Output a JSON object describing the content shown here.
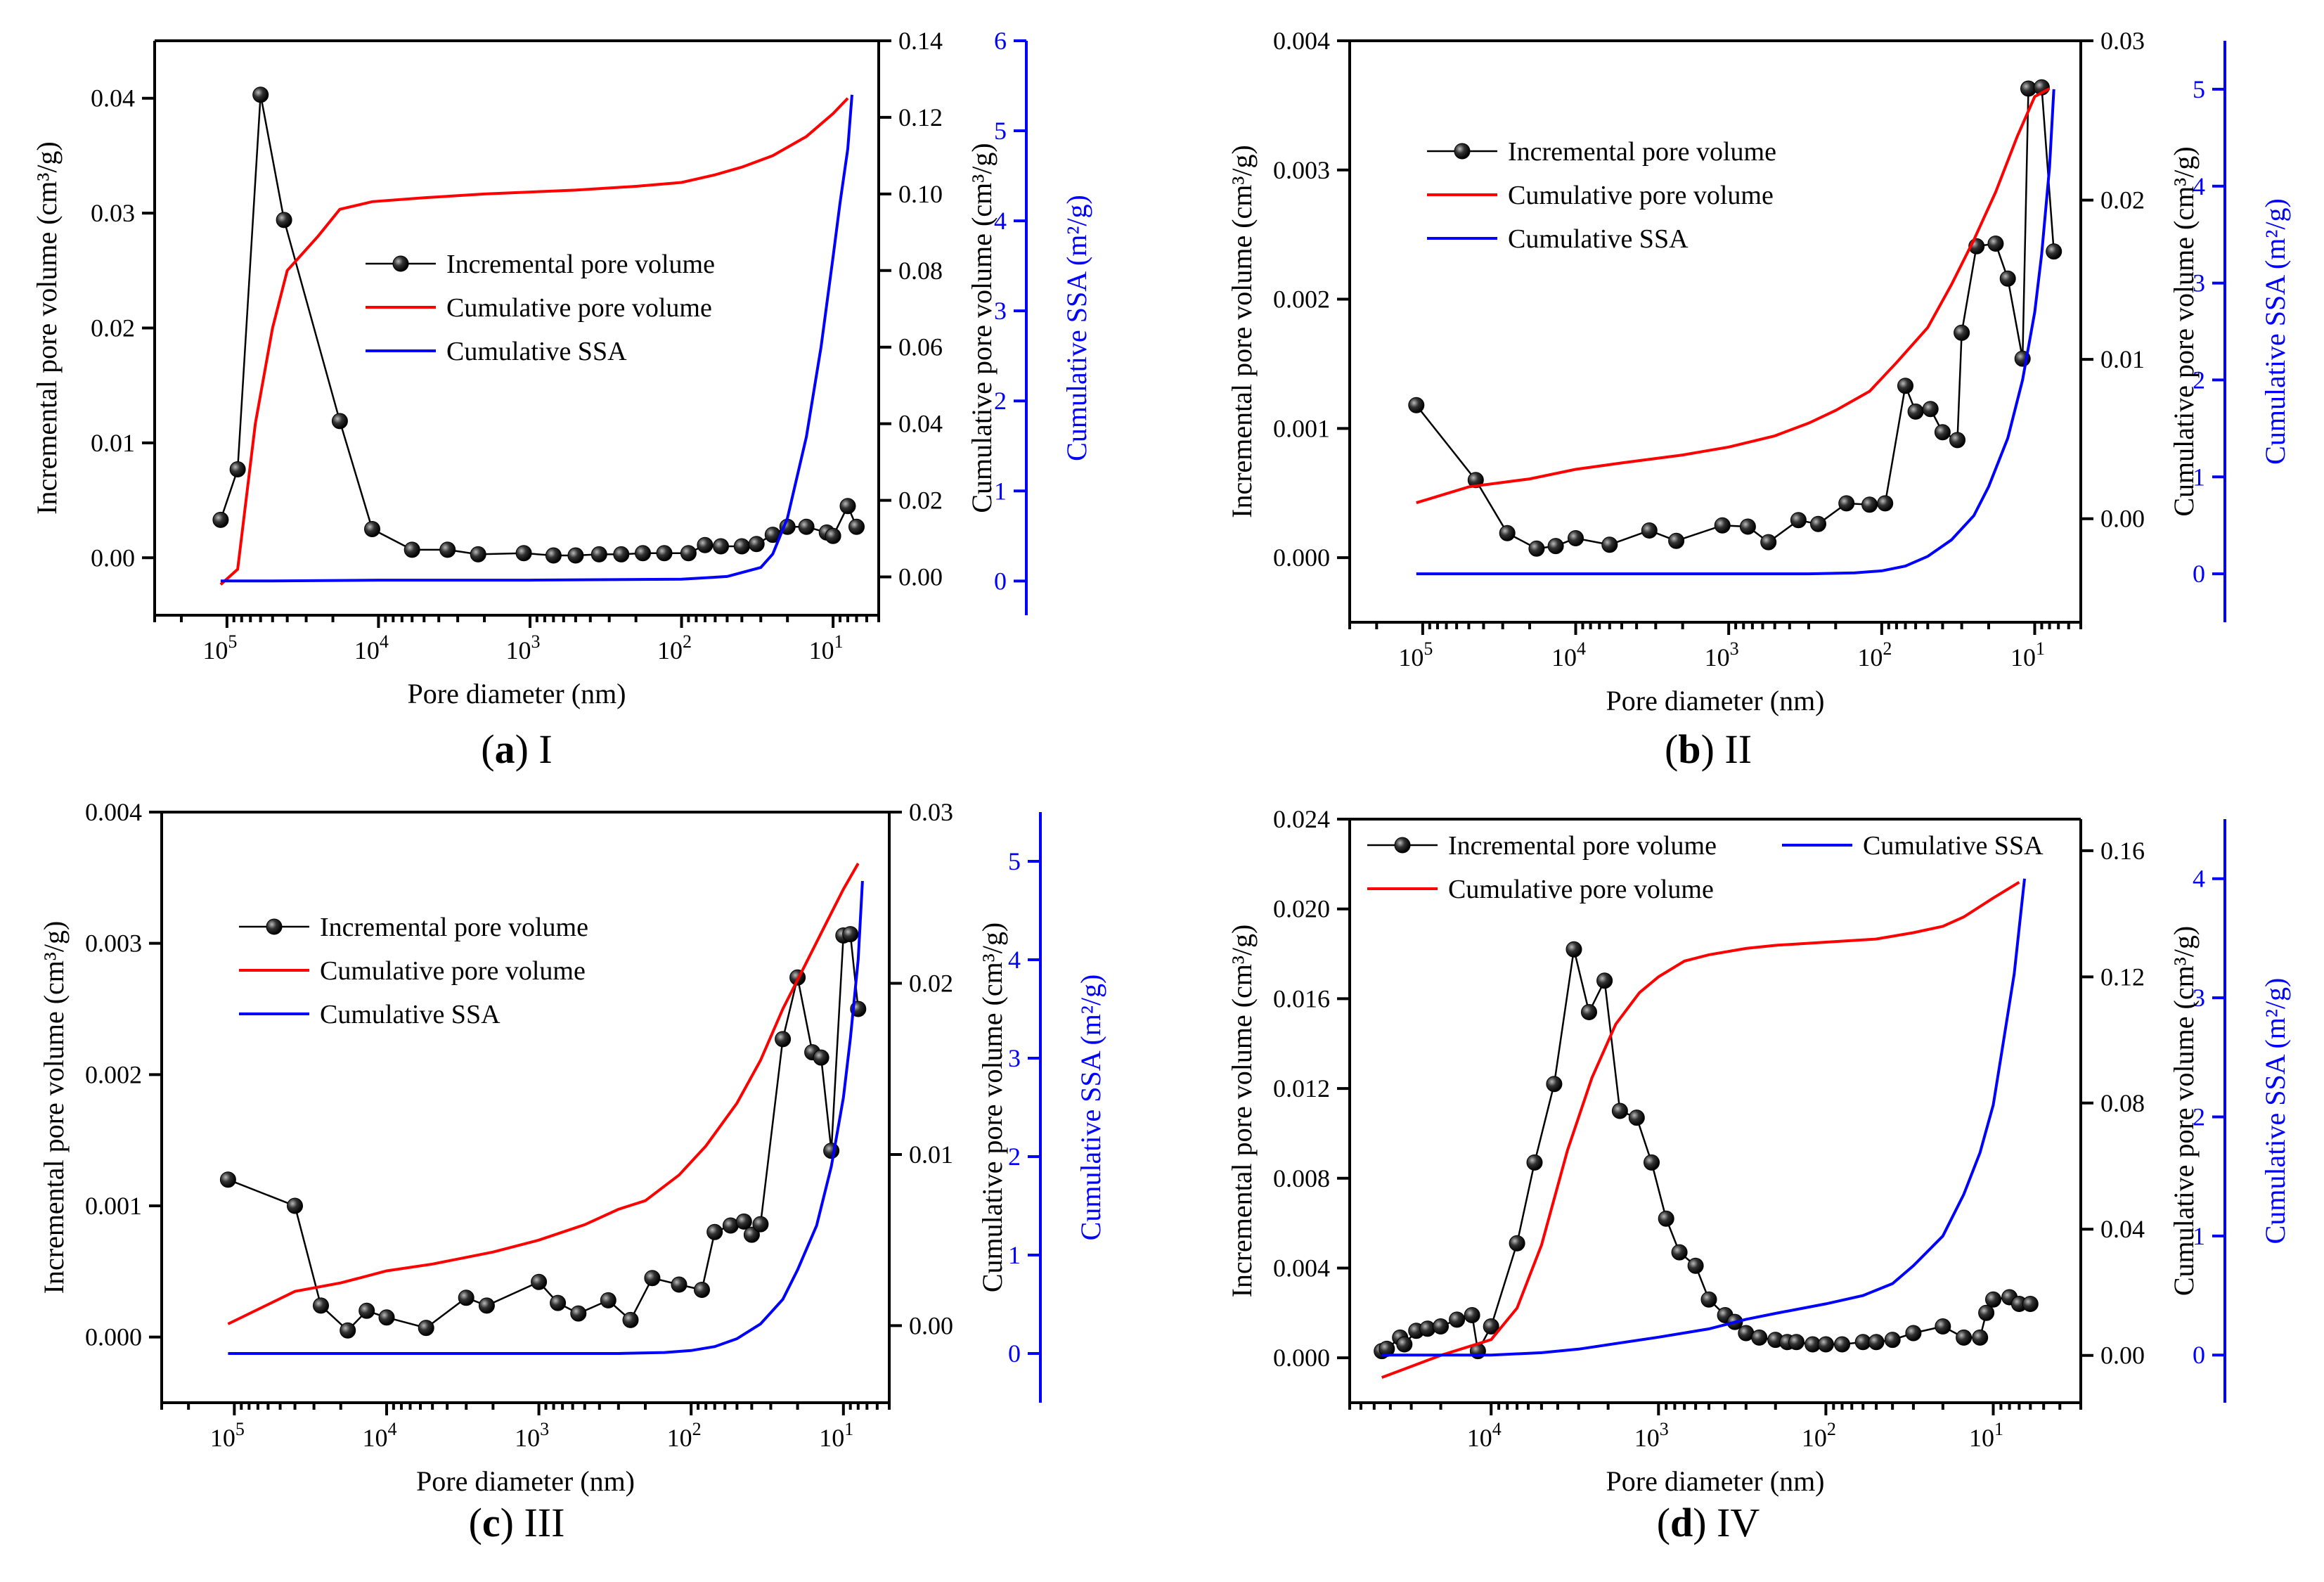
{
  "chart_data": [
    {
      "type": "line",
      "caption": {
        "letter": "a",
        "label": "I"
      },
      "xlabel": "Pore diameter (nm)",
      "ylabel": "Incremental pore volume (cm³/g)",
      "y2label": "Cumulative pore volume (cm³/g)",
      "y3label": "Cumulative SSA (m²/g)",
      "xscale": "log-reversed",
      "xlim": [
        300000,
        5
      ],
      "xticks": [
        {
          "exp": "5",
          "value": 100000
        },
        {
          "exp": "4",
          "value": 10000
        },
        {
          "exp": "3",
          "value": 1000
        },
        {
          "exp": "2",
          "value": 100
        },
        {
          "exp": "1",
          "value": 10
        }
      ],
      "ylim": [
        -0.005,
        0.045
      ],
      "yticks": [
        "0.00",
        "0.01",
        "0.02",
        "0.03",
        "0.04"
      ],
      "y2lim": [
        -0.01,
        0.14
      ],
      "y2ticks": [
        "0.00",
        "0.02",
        "0.04",
        "0.06",
        "0.08",
        "0.10",
        "0.12",
        "0.14"
      ],
      "y3lim": [
        -0.38,
        6
      ],
      "y3ticks": [
        "0",
        "1",
        "2",
        "3",
        "4",
        "5",
        "6"
      ],
      "legend": {
        "placement": "center-right",
        "layout": "vertical",
        "entries": [
          "Incremental pore volume",
          "Cumulative pore volume",
          "Cumulative SSA"
        ]
      },
      "series": [
        {
          "name": "Incremental pore volume",
          "axis": "y",
          "color": "#000000",
          "marker": "ball",
          "x": [
            110000,
            85000,
            60000,
            42000,
            18000,
            11000,
            6000,
            3500,
            2200,
            1100,
            700,
            500,
            350,
            250,
            180,
            130,
            90,
            70,
            55,
            40,
            32,
            25,
            20,
            15,
            11,
            10,
            8,
            7
          ],
          "y": [
            0.0033,
            0.0077,
            0.0403,
            0.0294,
            0.0119,
            0.0025,
            0.0007,
            0.0007,
            0.0003,
            0.0004,
            0.0002,
            0.0002,
            0.0003,
            0.0003,
            0.0004,
            0.0004,
            0.0004,
            0.0011,
            0.001,
            0.001,
            0.0012,
            0.002,
            0.0027,
            0.0027,
            0.0022,
            0.0019,
            0.0045,
            0.0027
          ]
        },
        {
          "name": "Cumulative pore volume",
          "axis": "y2",
          "color": "#ff0000",
          "x": [
            110000,
            85000,
            65000,
            50000,
            40000,
            25000,
            18000,
            11000,
            5000,
            2000,
            1000,
            500,
            200,
            100,
            60,
            40,
            25,
            15,
            10,
            8
          ],
          "y": [
            -0.002,
            0.002,
            0.04,
            0.065,
            0.08,
            0.089,
            0.096,
            0.098,
            0.099,
            0.1,
            0.1005,
            0.101,
            0.102,
            0.103,
            0.105,
            0.107,
            0.11,
            0.115,
            0.121,
            0.125
          ]
        },
        {
          "name": "Cumulative SSA",
          "axis": "y3",
          "color": "#0000ff",
          "x": [
            110000,
            50000,
            10000,
            1000,
            100,
            50,
            30,
            25,
            20,
            15,
            12,
            10,
            9,
            8,
            7.5
          ],
          "y": [
            0,
            0,
            0.01,
            0.01,
            0.02,
            0.05,
            0.15,
            0.3,
            0.7,
            1.6,
            2.6,
            3.6,
            4.2,
            4.8,
            5.4
          ]
        }
      ]
    },
    {
      "type": "line",
      "caption": {
        "letter": "b",
        "label": "II"
      },
      "xlabel": "Pore diameter (nm)",
      "ylabel": "Incremental pore volume (cm³/g)",
      "y2label": "Cumulative pore volume (cm³/g)",
      "y3label": "Cumulative SSA (m²/g)",
      "xscale": "log-reversed",
      "xlim": [
        300000,
        5
      ],
      "xticks": [
        {
          "exp": "5",
          "value": 100000
        },
        {
          "exp": "4",
          "value": 10000
        },
        {
          "exp": "3",
          "value": 1000
        },
        {
          "exp": "2",
          "value": 100
        },
        {
          "exp": "1",
          "value": 10
        }
      ],
      "ylim": [
        -0.0005,
        0.004
      ],
      "yticks": [
        "0.000",
        "0.001",
        "0.002",
        "0.003",
        "0.004"
      ],
      "y2lim": [
        -0.0065,
        0.03
      ],
      "y2ticks": [
        "0.00",
        "0.01",
        "0.02",
        "0.03"
      ],
      "y3lim": [
        -0.5,
        5.5
      ],
      "y3ticks": [
        "0",
        "1",
        "2",
        "3",
        "4",
        "5"
      ],
      "legend": {
        "placement": "top-center",
        "layout": "vertical",
        "entries": [
          "Incremental pore volume",
          "Cumulative pore volume",
          "Cumulative SSA"
        ]
      },
      "series": [
        {
          "name": "Incremental pore volume",
          "axis": "y",
          "color": "#000000",
          "marker": "ball",
          "x": [
            110000,
            45000,
            28000,
            18000,
            13500,
            10000,
            6000,
            3300,
            2200,
            1100,
            750,
            550,
            350,
            260,
            170,
            120,
            95,
            70,
            60,
            48,
            40,
            32,
            30,
            24,
            18,
            15,
            12,
            11,
            9,
            7.5
          ],
          "y": [
            0.00118,
            0.0006,
            0.00019,
            7e-05,
            9e-05,
            0.00015,
            0.0001,
            0.00021,
            0.00013,
            0.00025,
            0.00024,
            0.00012,
            0.00029,
            0.00026,
            0.00042,
            0.00041,
            0.00042,
            0.00133,
            0.00113,
            0.00115,
            0.00097,
            0.00091,
            0.00174,
            0.00241,
            0.00243,
            0.00216,
            0.00154,
            0.00363,
            0.00364,
            0.00237
          ]
        },
        {
          "name": "Cumulative pore volume",
          "axis": "y2",
          "color": "#ff0000",
          "x": [
            110000,
            50000,
            20000,
            10000,
            5000,
            2000,
            1000,
            500,
            300,
            200,
            120,
            80,
            50,
            35,
            25,
            18,
            13,
            10,
            8
          ],
          "y": [
            0.001,
            0.002,
            0.0025,
            0.0031,
            0.0035,
            0.004,
            0.0045,
            0.0052,
            0.006,
            0.0068,
            0.008,
            0.0098,
            0.012,
            0.0147,
            0.0175,
            0.0205,
            0.024,
            0.0265,
            0.027
          ]
        },
        {
          "name": "Cumulative SSA",
          "axis": "y3",
          "color": "#0000ff",
          "x": [
            110000,
            10000,
            1000,
            300,
            150,
            100,
            70,
            50,
            35,
            25,
            20,
            15,
            12,
            10,
            9,
            8,
            7.5
          ],
          "y": [
            0,
            0,
            0,
            0,
            0.01,
            0.03,
            0.08,
            0.18,
            0.35,
            0.6,
            0.9,
            1.4,
            2,
            2.7,
            3.3,
            4.2,
            5
          ]
        }
      ]
    },
    {
      "type": "line",
      "caption": {
        "letter": "c",
        "label": "III"
      },
      "xlabel": "Pore diameter (nm)",
      "ylabel": "Incremental pore volume (cm³/g)",
      "y2label": "Cumulative pore volume (cm³/g)",
      "y3label": "Cumulative SSA (m²/g)",
      "xscale": "log-reversed",
      "xlim": [
        300000,
        5
      ],
      "xticks": [
        {
          "exp": "5",
          "value": 100000
        },
        {
          "exp": "4",
          "value": 10000
        },
        {
          "exp": "3",
          "value": 1000
        },
        {
          "exp": "2",
          "value": 100
        },
        {
          "exp": "1",
          "value": 10
        }
      ],
      "ylim": [
        -0.0005,
        0.004
      ],
      "yticks": [
        "0.000",
        "0.001",
        "0.002",
        "0.003",
        "0.004"
      ],
      "y2lim": [
        -0.0045,
        0.03
      ],
      "y2ticks": [
        "0.00",
        "0.01",
        "0.02",
        "0.03"
      ],
      "y3lim": [
        -0.5,
        5.5
      ],
      "y3ticks": [
        "0",
        "1",
        "2",
        "3",
        "4",
        "5"
      ],
      "legend": {
        "placement": "center-left",
        "layout": "vertical",
        "entries": [
          "Incremental pore volume",
          "Cumulative pore volume",
          "Cumulative SSA"
        ]
      },
      "series": [
        {
          "name": "Incremental pore volume",
          "axis": "y",
          "color": "#000000",
          "marker": "ball",
          "x": [
            110000,
            40000,
            27000,
            18000,
            13500,
            10000,
            5500,
            3000,
            2200,
            1000,
            750,
            550,
            350,
            250,
            180,
            120,
            85,
            70,
            55,
            45,
            40,
            35,
            25,
            20,
            16,
            14,
            12,
            10,
            9,
            8
          ],
          "y": [
            0.0012,
            0.001,
            0.00024,
            5e-05,
            0.0002,
            0.00015,
            7e-05,
            0.0003,
            0.00024,
            0.00042,
            0.00026,
            0.00018,
            0.00028,
            0.00013,
            0.00045,
            0.0004,
            0.00036,
            0.0008,
            0.00085,
            0.00088,
            0.00078,
            0.00086,
            0.00227,
            0.00274,
            0.00217,
            0.00213,
            0.00142,
            0.00306,
            0.00307,
            0.0025
          ]
        },
        {
          "name": "Cumulative pore volume",
          "axis": "y2",
          "color": "#ff0000",
          "x": [
            110000,
            40000,
            20000,
            10000,
            5000,
            2000,
            1000,
            500,
            300,
            200,
            120,
            80,
            50,
            35,
            25,
            18,
            13,
            10,
            8
          ],
          "y": [
            0.0001,
            0.002,
            0.0025,
            0.0032,
            0.0036,
            0.0043,
            0.005,
            0.0059,
            0.0068,
            0.0073,
            0.0088,
            0.0105,
            0.013,
            0.0155,
            0.0185,
            0.021,
            0.0235,
            0.0255,
            0.027
          ]
        },
        {
          "name": "Cumulative SSA",
          "axis": "y3",
          "color": "#0000ff",
          "x": [
            110000,
            10000,
            1000,
            300,
            150,
            100,
            70,
            50,
            35,
            25,
            20,
            15,
            12,
            10,
            9,
            8,
            7.5
          ],
          "y": [
            0,
            0,
            0,
            0,
            0.01,
            0.03,
            0.07,
            0.15,
            0.3,
            0.55,
            0.85,
            1.3,
            1.9,
            2.6,
            3.2,
            4,
            4.8
          ]
        }
      ]
    },
    {
      "type": "line",
      "caption": {
        "letter": "d",
        "label": "IV"
      },
      "xlabel": "Pore diameter (nm)",
      "ylabel": "Incremental pore volume (cm³/g)",
      "y2label": "Cumulative pore volume (cm³/g)",
      "y3label": "Cumulative SSA (m²/g)",
      "xscale": "log-reversed",
      "xlim": [
        70000,
        3
      ],
      "xticks": [
        {
          "exp": "4",
          "value": 10000
        },
        {
          "exp": "3",
          "value": 1000
        },
        {
          "exp": "2",
          "value": 100
        },
        {
          "exp": "1",
          "value": 10
        }
      ],
      "ylim": [
        -0.002,
        0.024
      ],
      "yticks": [
        "0.000",
        "0.004",
        "0.008",
        "0.012",
        "0.016",
        "0.020",
        "0.024"
      ],
      "y2lim": [
        -0.015,
        0.17
      ],
      "y2ticks": [
        "0.00",
        "0.04",
        "0.08",
        "0.12",
        "0.16"
      ],
      "y3lim": [
        -0.4,
        4.5
      ],
      "y3ticks": [
        "0",
        "1",
        "2",
        "3",
        "4"
      ],
      "legend": {
        "placement": "top",
        "layout": "two-column",
        "entries": [
          "Incremental pore volume",
          "Cumulative SSA",
          "Cumulative pore volume"
        ]
      },
      "series": [
        {
          "name": "Incremental pore volume",
          "axis": "y",
          "color": "#000000",
          "marker": "ball",
          "x": [
            45000,
            42000,
            35000,
            33000,
            28000,
            24000,
            20000,
            16000,
            13000,
            12000,
            10000,
            7000,
            5500,
            4200,
            3200,
            2600,
            2100,
            1700,
            1350,
            1100,
            900,
            750,
            600,
            500,
            400,
            350,
            300,
            250,
            200,
            170,
            150,
            120,
            100,
            80,
            60,
            50,
            40,
            30,
            20,
            15,
            12,
            11,
            10,
            8,
            7,
            6
          ],
          "y": [
            0.0003,
            0.0004,
            0.0009,
            0.0006,
            0.0012,
            0.0013,
            0.0014,
            0.0017,
            0.0019,
            0.0003,
            0.0014,
            0.0051,
            0.0087,
            0.0122,
            0.0182,
            0.0154,
            0.0168,
            0.011,
            0.0107,
            0.0087,
            0.0062,
            0.0047,
            0.0041,
            0.0026,
            0.0019,
            0.0016,
            0.0011,
            0.0009,
            0.0008,
            0.0007,
            0.0007,
            0.0006,
            0.0006,
            0.0006,
            0.0007,
            0.0007,
            0.0008,
            0.0011,
            0.0014,
            0.0009,
            0.0009,
            0.002,
            0.0026,
            0.0027,
            0.0024,
            0.0024
          ]
        },
        {
          "name": "Cumulative pore volume",
          "axis": "y2",
          "color": "#ff0000",
          "x": [
            45000,
            20000,
            10000,
            7000,
            5000,
            3500,
            2500,
            1800,
            1300,
            1000,
            700,
            500,
            300,
            200,
            100,
            50,
            30,
            20,
            15,
            10,
            7
          ],
          "y": [
            -0.007,
            0,
            0.005,
            0.015,
            0.035,
            0.065,
            0.088,
            0.105,
            0.115,
            0.12,
            0.125,
            0.127,
            0.129,
            0.13,
            0.131,
            0.132,
            0.134,
            0.136,
            0.139,
            0.145,
            0.15
          ]
        },
        {
          "name": "Cumulative SSA",
          "axis": "y3",
          "color": "#0000ff",
          "x": [
            45000,
            10000,
            5000,
            3000,
            1000,
            500,
            300,
            200,
            100,
            60,
            40,
            30,
            20,
            15,
            12,
            10,
            9,
            7.5,
            6.5
          ],
          "y": [
            0,
            0,
            0.02,
            0.05,
            0.15,
            0.22,
            0.3,
            0.35,
            0.43,
            0.5,
            0.6,
            0.75,
            1,
            1.35,
            1.7,
            2.1,
            2.5,
            3.2,
            4
          ]
        }
      ]
    }
  ]
}
